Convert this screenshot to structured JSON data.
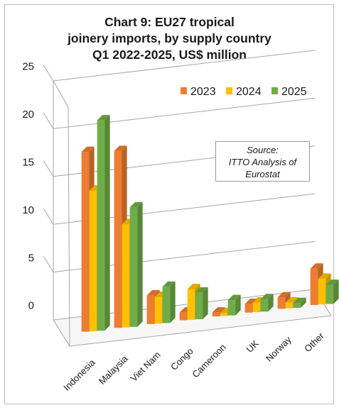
{
  "chart_data": {
    "type": "bar",
    "title_lines": [
      "Chart 9: EU27 tropical",
      "joinery imports, by supply country",
      "Q1 2022-2025, US$ million"
    ],
    "categories": [
      "Indonesia",
      "Malaysia",
      "Viet Nam",
      "Congo",
      "Cameroon",
      "UK",
      "Norway",
      "Other"
    ],
    "series": [
      {
        "name": "2023",
        "color": "#ED7D31",
        "values": [
          18.8,
          18.5,
          3.0,
          0.8,
          0.4,
          0.9,
          1.2,
          3.8
        ]
      },
      {
        "name": "2024",
        "color": "#FFC000",
        "values": [
          14.7,
          10.8,
          2.8,
          3.2,
          0.3,
          1.0,
          0.6,
          2.7
        ]
      },
      {
        "name": "2025",
        "color": "#70AD47",
        "values": [
          22.0,
          12.5,
          3.8,
          2.8,
          1.6,
          1.3,
          0.5,
          2.0
        ]
      }
    ],
    "ylim": [
      0,
      25
    ],
    "yticks": [
      "0",
      "5",
      "10",
      "15",
      "20",
      "25"
    ],
    "grid": true,
    "legend_position": "top-right",
    "source_note": [
      "Source:",
      "ITTO Analysis of",
      "Eurostat"
    ]
  }
}
